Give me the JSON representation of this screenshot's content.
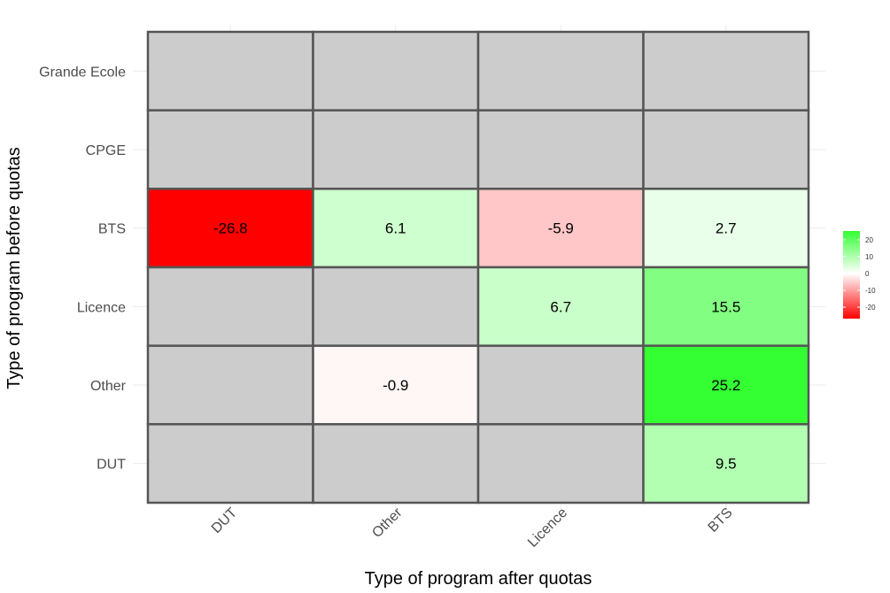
{
  "chart_data": {
    "type": "heatmap",
    "xlabel": "Type of program after quotas",
    "ylabel": "Type of program before quotas",
    "x_categories": [
      "DUT",
      "Other",
      "Licence",
      "BTS"
    ],
    "y_categories": [
      "Grande Ecole",
      "CPGE",
      "BTS",
      "Licence",
      "Other",
      "DUT"
    ],
    "values": [
      [
        null,
        null,
        null,
        null
      ],
      [
        null,
        null,
        null,
        null
      ],
      [
        -26.8,
        6.1,
        -5.9,
        2.7
      ],
      [
        null,
        null,
        6.7,
        15.5
      ],
      [
        null,
        -0.9,
        null,
        25.2
      ],
      [
        null,
        null,
        null,
        9.5
      ]
    ],
    "value_labels": [
      [
        "",
        "",
        "",
        ""
      ],
      [
        "",
        "",
        "",
        ""
      ],
      [
        "-26.8",
        "6.1",
        "-5.9",
        "2.7"
      ],
      [
        "",
        "",
        "6.7",
        "15.5"
      ],
      [
        "",
        "-0.9",
        "",
        "25.2"
      ],
      [
        "",
        "",
        "",
        "9.5"
      ]
    ],
    "color_scale": {
      "low_color": "#ff0000",
      "mid_color": "#ffffff",
      "high_color": "#33ff33",
      "missing_color": "#cccccc",
      "border_color": "#555555",
      "limits": [
        -26.8,
        25.2
      ]
    },
    "legend": {
      "position": "right",
      "ticks": [
        "20",
        "10",
        "0",
        "-10",
        "-20"
      ],
      "tick_values": [
        20,
        10,
        0,
        -10,
        -20
      ]
    },
    "grid": true
  }
}
